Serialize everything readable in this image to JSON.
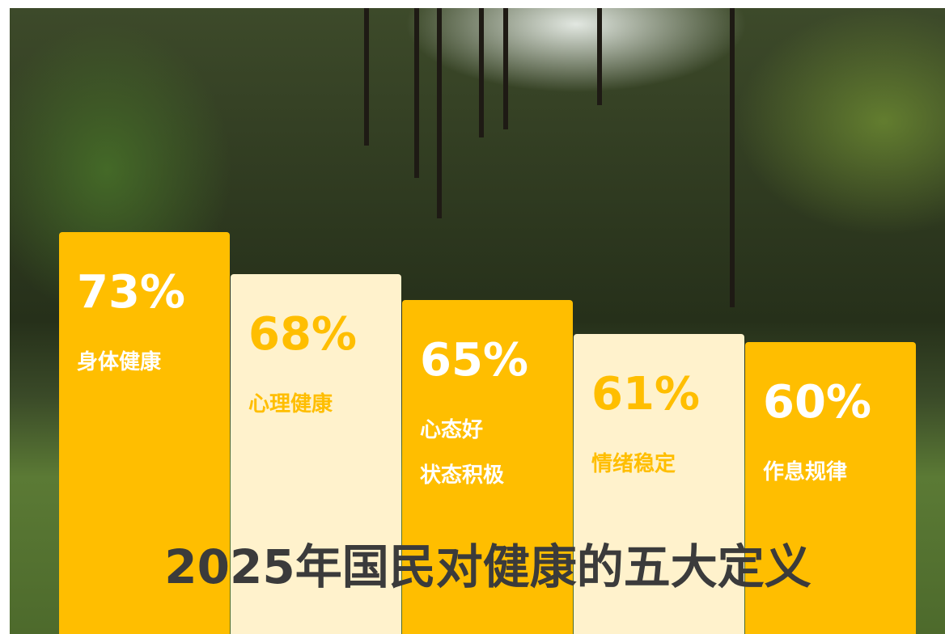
{
  "chart_data": {
    "type": "bar",
    "title": "2025年国民对健康的五大定义",
    "categories": [
      [
        "身体健康"
      ],
      [
        "心理健康"
      ],
      [
        "心态好",
        "状态积极"
      ],
      [
        "情绪稳定"
      ],
      [
        "作息规律"
      ]
    ],
    "values": [
      73,
      68,
      65,
      61,
      60
    ],
    "value_labels": [
      "73%",
      "68%",
      "65%",
      "61%",
      "60%"
    ],
    "colors": [
      "#ffbe00",
      "#fff2cc",
      "#ffbe00",
      "#fff2cc",
      "#ffbe00"
    ],
    "label_colors": [
      "#ffffff",
      "#ffbe00",
      "#ffffff",
      "#ffbe00",
      "#ffffff"
    ]
  }
}
